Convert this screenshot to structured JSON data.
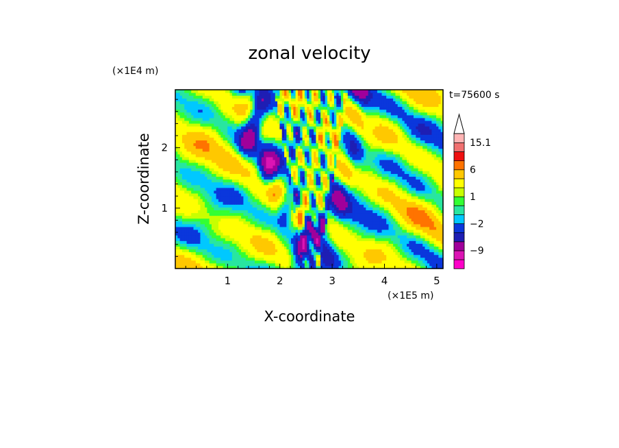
{
  "chart_data": {
    "type": "heatmap",
    "title": "zonal velocity",
    "xlabel": "X-coordinate",
    "ylabel": "Z-coordinate",
    "x_unit": "(×1E5 m)",
    "y_unit": "(×1E4 m)",
    "time_label": "t=75600 s",
    "xlim": [
      0,
      5.12
    ],
    "ylim": [
      0,
      2.96
    ],
    "x_ticks": [
      1,
      2,
      3,
      4,
      5
    ],
    "y_ticks": [
      1,
      2
    ],
    "colorbar": {
      "levels": [
        -15,
        -12,
        -9,
        -6,
        -4,
        -2,
        -1,
        0,
        1,
        2,
        4,
        6,
        9,
        12,
        15.1
      ],
      "colors": [
        "#ff00c8",
        "#dc14b4",
        "#a0009b",
        "#1e1eb4",
        "#0a37dc",
        "#00c8ff",
        "#28e6a0",
        "#33ff33",
        "#c8ff00",
        "#ffff00",
        "#ffc800",
        "#ff7300",
        "#ee1010",
        "#f07070",
        "#ffb4b4"
      ],
      "extend_color": "#ffffff",
      "labels": [
        {
          "value": 15.1,
          "text": "15.1"
        },
        {
          "value": 6,
          "text": "6"
        },
        {
          "value": 1,
          "text": "1"
        },
        {
          "value": -2,
          "text": "−2"
        },
        {
          "value": -9,
          "text": "−9"
        }
      ]
    }
  }
}
